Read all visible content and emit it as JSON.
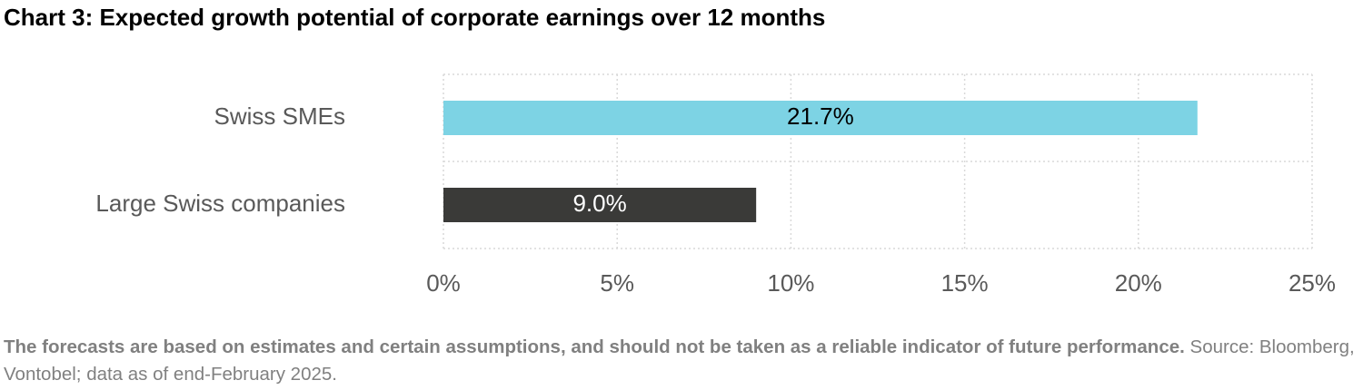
{
  "chart_data": {
    "type": "hbar",
    "title": "Chart 3: Expected growth potential of corporate earnings over 12 months",
    "categories": [
      "Swiss SMEs",
      "Large Swiss companies"
    ],
    "values": [
      21.7,
      9.0
    ],
    "value_labels": [
      "21.7%",
      "9.0%"
    ],
    "colors": [
      "#7dd3e4",
      "#3a3a38"
    ],
    "xlim": [
      0,
      25
    ],
    "xticks": [
      {
        "value": 0,
        "label": "0%"
      },
      {
        "value": 5,
        "label": "5%"
      },
      {
        "value": 10,
        "label": "10%"
      },
      {
        "value": 15,
        "label": "15%"
      },
      {
        "value": 20,
        "label": "20%"
      },
      {
        "value": 25,
        "label": "25%"
      }
    ],
    "grid": true,
    "footnote_bold": "The forecasts are based on estimates and certain assumptions, and should not be taken as a reliable indicator of future performance.",
    "footnote": "Source: Bloomberg, Vontobel; data as of end-February 2025."
  }
}
